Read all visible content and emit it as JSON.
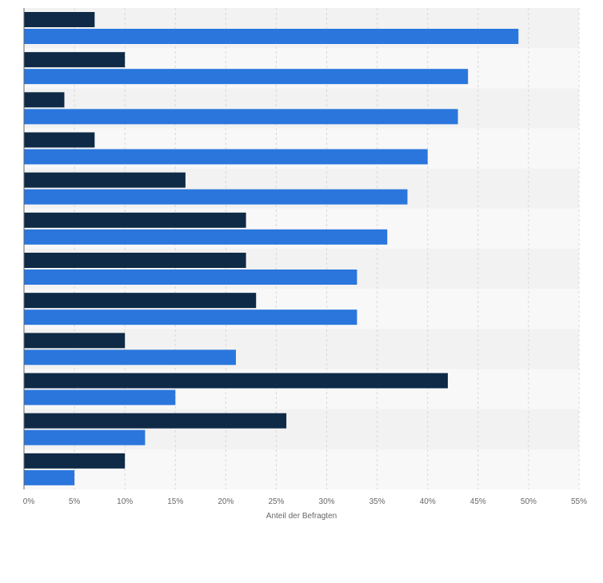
{
  "chart_data": {
    "type": "bar",
    "orientation": "horizontal",
    "xlabel": "Anteil der Befragten",
    "xlim": [
      0,
      55
    ],
    "xticks": [
      0,
      5,
      10,
      15,
      20,
      25,
      30,
      35,
      40,
      45,
      50,
      55
    ],
    "tick_labels": [
      "0%",
      "5%",
      "10%",
      "15%",
      "20%",
      "25%",
      "30%",
      "35%",
      "40%",
      "45%",
      "50%",
      "55%"
    ],
    "grid": true,
    "category_count": 12,
    "series": [
      {
        "values": [
          7,
          10,
          4,
          7,
          16,
          22,
          22,
          23,
          10,
          42,
          26,
          10
        ],
        "color": "#0e2a47"
      },
      {
        "values": [
          49,
          44,
          43,
          40,
          38,
          36,
          33,
          33,
          21,
          15,
          12,
          5
        ],
        "color": "#2a76dd"
      }
    ],
    "colors": {
      "band_odd": "#f2f2f2",
      "band_even": "#f8f8f8",
      "grid": "#d9d9d9",
      "axis": "#666666"
    }
  }
}
